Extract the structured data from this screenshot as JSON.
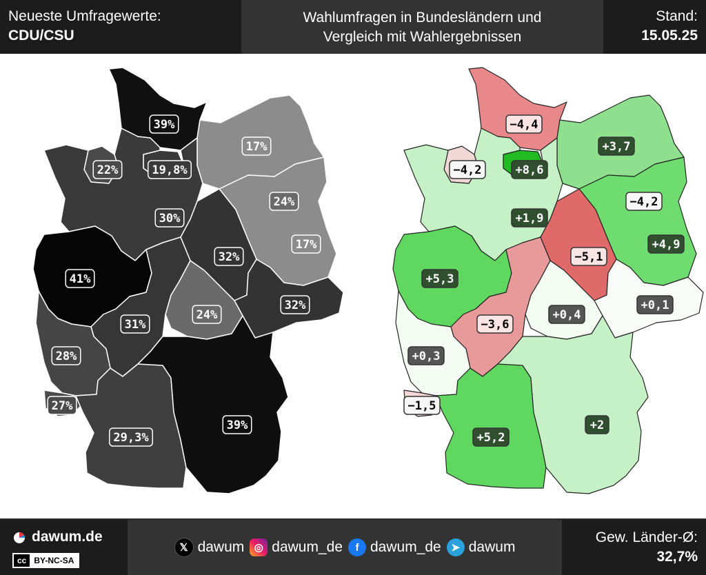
{
  "header": {
    "left_line1": "Neueste Umfragewerte:",
    "left_line2": "CDU/CSU",
    "title_line1": "Wahlumfragen in Bundesländern und",
    "title_line2": "Vergleich mit Wahlergebnissen",
    "stand_label": "Stand:",
    "stand_date": "15.05.25"
  },
  "footer": {
    "brand": "dawum.de",
    "license": "BY-NC-SA",
    "license_logo": "cc",
    "social": [
      {
        "icon": "x-icon",
        "glyph": "𝕏",
        "handle": "dawum"
      },
      {
        "icon": "instagram-icon",
        "glyph": "◎",
        "handle": "dawum_de"
      },
      {
        "icon": "facebook-icon",
        "glyph": "f",
        "handle": "dawum_de"
      },
      {
        "icon": "telegram-icon",
        "glyph": "➤",
        "handle": "dawum"
      }
    ],
    "avg_label": "Gew. Länder-Ø:",
    "avg_value": "32,7%"
  },
  "left_map": {
    "states": [
      {
        "id": "SH",
        "label": "39%",
        "fill": "#111111"
      },
      {
        "id": "HH",
        "label": "19,8%",
        "fill": "#3a3a3a"
      },
      {
        "id": "MV",
        "label": "17%",
        "fill": "#8c8c8c"
      },
      {
        "id": "HB",
        "label": "22%",
        "fill": "#4a4a4a"
      },
      {
        "id": "NI",
        "label": "30%",
        "fill": "#3a3a3a"
      },
      {
        "id": "BE",
        "label": "24%",
        "fill": "#6a6a6a"
      },
      {
        "id": "BB",
        "label": "17%",
        "fill": "#8c8c8c"
      },
      {
        "id": "ST",
        "label": "32%",
        "fill": "#333333"
      },
      {
        "id": "NW",
        "label": "41%",
        "fill": "#050505"
      },
      {
        "id": "SN",
        "label": "32%",
        "fill": "#333333"
      },
      {
        "id": "TH",
        "label": "24%",
        "fill": "#6a6a6a"
      },
      {
        "id": "HE",
        "label": "31%",
        "fill": "#363636"
      },
      {
        "id": "RP",
        "label": "28%",
        "fill": "#454545"
      },
      {
        "id": "SL",
        "label": "27%",
        "fill": "#4b4b4b"
      },
      {
        "id": "BW",
        "label": "29,3%",
        "fill": "#3f3f3f"
      },
      {
        "id": "BY",
        "label": "39%",
        "fill": "#0f0f0f"
      }
    ]
  },
  "right_map": {
    "states": [
      {
        "id": "SH",
        "label": "−4,4",
        "fill": "#e8888a",
        "label_bg": "#fbe4e4",
        "label_fg": "#000000"
      },
      {
        "id": "HH",
        "label": "+8,6",
        "fill": "#22bb22",
        "label_bg": "#2f4f2f",
        "label_fg": "#ffffff"
      },
      {
        "id": "MV",
        "label": "+3,7",
        "fill": "#8ee08e",
        "label_bg": "#2f4f2f",
        "label_fg": "#ffffff"
      },
      {
        "id": "HB",
        "label": "−4,2",
        "fill": "#f2d7d7",
        "label_bg": "#f6f6f6",
        "label_fg": "#000000"
      },
      {
        "id": "NI",
        "label": "+1,9",
        "fill": "#c6f0c6",
        "label_bg": "#2f4f2f",
        "label_fg": "#ffffff"
      },
      {
        "id": "BE",
        "label": "−4,2",
        "fill": "#e58888",
        "label_bg": "#f6f6f6",
        "label_fg": "#000000"
      },
      {
        "id": "BB",
        "label": "+4,9",
        "fill": "#6fdc6f",
        "label_bg": "#2f4f2f",
        "label_fg": "#ffffff"
      },
      {
        "id": "ST",
        "label": "−5,1",
        "fill": "#e06a6a",
        "label_bg": "#fbe4e4",
        "label_fg": "#000000"
      },
      {
        "id": "NW",
        "label": "+5,3",
        "fill": "#60d860",
        "label_bg": "#2f4f2f",
        "label_fg": "#ffffff"
      },
      {
        "id": "SN",
        "label": "+0,1",
        "fill": "#f8fbf8",
        "label_bg": "#555555",
        "label_fg": "#ffffff"
      },
      {
        "id": "TH",
        "label": "+0,4",
        "fill": "#f3fbf3",
        "label_bg": "#555555",
        "label_fg": "#ffffff"
      },
      {
        "id": "HE",
        "label": "−3,6",
        "fill": "#e89a9a",
        "label_bg": "#fbe4e4",
        "label_fg": "#000000"
      },
      {
        "id": "RP",
        "label": "+0,3",
        "fill": "#f3fbf3",
        "label_bg": "#555555",
        "label_fg": "#ffffff"
      },
      {
        "id": "SL",
        "label": "−1,5",
        "fill": "#f6d6d6",
        "label_bg": "#f6f6f6",
        "label_fg": "#000000"
      },
      {
        "id": "BW",
        "label": "+5,2",
        "fill": "#60d860",
        "label_bg": "#2f4f2f",
        "label_fg": "#ffffff"
      },
      {
        "id": "BY",
        "label": "+2",
        "fill": "#c6f0c6",
        "label_bg": "#2f4f2f",
        "label_fg": "#ffffff"
      }
    ]
  }
}
